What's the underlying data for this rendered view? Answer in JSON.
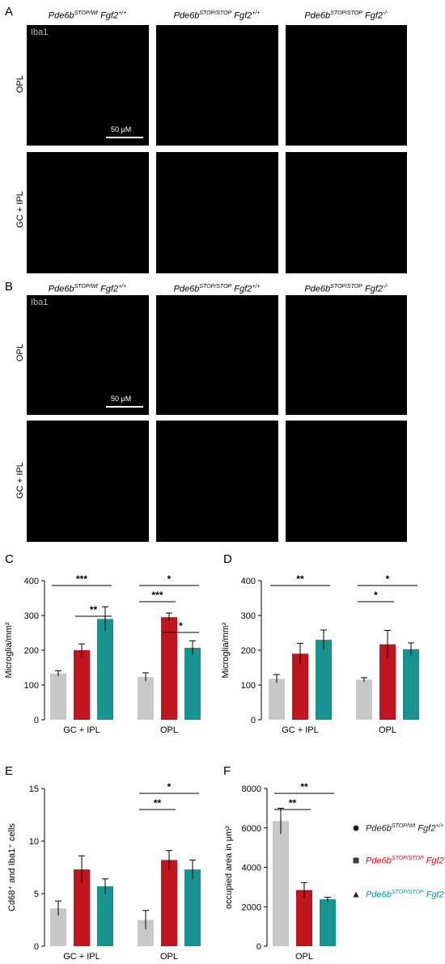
{
  "panels": {
    "A": "A",
    "B": "B",
    "C": "C",
    "D": "D",
    "E": "E",
    "F": "F"
  },
  "image_headers": [
    {
      "gene1": "Pde6b",
      "sup1": "STOP/Wt",
      "gene2": "Fgf2",
      "sup2": "+/+"
    },
    {
      "gene1": "Pde6b",
      "sup1": "STOP/STOP",
      "gene2": "Fgf2",
      "sup2": "+/+"
    },
    {
      "gene1": "Pde6b",
      "sup1": "STOP/STOP",
      "gene2": "Fgf2",
      "sup2": "-/-"
    }
  ],
  "micro": {
    "stain": "Iba1",
    "row_labels": [
      "OPL",
      "GC + IPL"
    ],
    "scale": "50 μM"
  },
  "colors": {
    "gray": "#c8c8c8",
    "red": "#c0141e",
    "teal": "#17948f",
    "image_bg": "#000000"
  },
  "legend": [
    {
      "gene1": "Pde6b",
      "sup1": "STOP/Wt",
      "gene2": "Fgf2",
      "sup2": "+/+",
      "marker": "circle",
      "color": "#222222"
    },
    {
      "gene1": "Pde6b",
      "sup1": "STOP/STOP",
      "gene2": "Fgf2",
      "sup2": "+/+",
      "marker": "square",
      "color": "#c0141e"
    },
    {
      "gene1": "Pde6b",
      "sup1": "STOP/STOP",
      "gene2": "Fgf2",
      "sup2": "-/-",
      "marker": "triangle",
      "color": "#17948f"
    }
  ],
  "chart_data": [
    {
      "panel": "C",
      "type": "bar",
      "ylabel": "Microglia/mm²",
      "ylim": [
        0,
        400
      ],
      "yticks": [
        0,
        100,
        200,
        300,
        400
      ],
      "groups": [
        "GC + IPL",
        "OPL"
      ],
      "series": [
        {
          "values": [
            133,
            123
          ],
          "errors": [
            8,
            12
          ]
        },
        {
          "values": [
            200,
            295
          ],
          "errors": [
            18,
            12
          ]
        },
        {
          "values": [
            290,
            207
          ],
          "errors": [
            35,
            20
          ]
        }
      ],
      "sig": [
        {
          "group": 0,
          "from": 0,
          "to": 2,
          "label": "***"
        },
        {
          "group": 0,
          "from": 1,
          "to": 2,
          "label": "**"
        },
        {
          "group": 1,
          "from": 0,
          "to": 2,
          "label": "*"
        },
        {
          "group": 1,
          "from": 0,
          "to": 1,
          "label": "***"
        },
        {
          "group": 1,
          "from": 1,
          "to": 2,
          "label": "*"
        }
      ]
    },
    {
      "panel": "D",
      "type": "bar",
      "ylabel": "Microglia/mm²",
      "ylim": [
        0,
        400
      ],
      "yticks": [
        0,
        100,
        200,
        300,
        400
      ],
      "groups": [
        "GC + IPL",
        "OPL"
      ],
      "series": [
        {
          "values": [
            118,
            115
          ],
          "errors": [
            12,
            6
          ]
        },
        {
          "values": [
            190,
            217
          ],
          "errors": [
            30,
            40
          ]
        },
        {
          "values": [
            230,
            203
          ],
          "errors": [
            28,
            18
          ]
        }
      ],
      "sig": [
        {
          "group": 0,
          "from": 0,
          "to": 2,
          "label": "**"
        },
        {
          "group": 1,
          "from": 0,
          "to": 2,
          "label": "*"
        },
        {
          "group": 1,
          "from": 0,
          "to": 1,
          "label": "*"
        }
      ]
    },
    {
      "panel": "E",
      "type": "bar",
      "ylabel": "Cd68⁺ and Iba1⁺ cells",
      "ylim": [
        0,
        15
      ],
      "yticks": [
        0,
        5,
        10,
        15
      ],
      "groups": [
        "GC + IPL",
        "OPL"
      ],
      "series": [
        {
          "values": [
            3.6,
            2.5
          ],
          "errors": [
            0.7,
            0.9
          ]
        },
        {
          "values": [
            7.3,
            8.2
          ],
          "errors": [
            1.3,
            0.9
          ]
        },
        {
          "values": [
            5.7,
            7.3
          ],
          "errors": [
            0.7,
            0.9
          ]
        }
      ],
      "sig": [
        {
          "group": 1,
          "from": 0,
          "to": 2,
          "label": "*"
        },
        {
          "group": 1,
          "from": 0,
          "to": 1,
          "label": "**"
        }
      ]
    },
    {
      "panel": "F",
      "type": "bar",
      "ylabel": "occupied area in μm²",
      "ylim": [
        0,
        8000
      ],
      "yticks": [
        0,
        2000,
        4000,
        6000,
        8000
      ],
      "groups": [
        "OPL"
      ],
      "series": [
        {
          "values": [
            6350
          ],
          "errors": [
            650
          ]
        },
        {
          "values": [
            2850
          ],
          "errors": [
            380
          ]
        },
        {
          "values": [
            2380
          ],
          "errors": [
            100
          ]
        }
      ],
      "sig": [
        {
          "group": 0,
          "from": 0,
          "to": 2,
          "label": "**"
        },
        {
          "group": 0,
          "from": 0,
          "to": 1,
          "label": "**"
        }
      ]
    }
  ]
}
